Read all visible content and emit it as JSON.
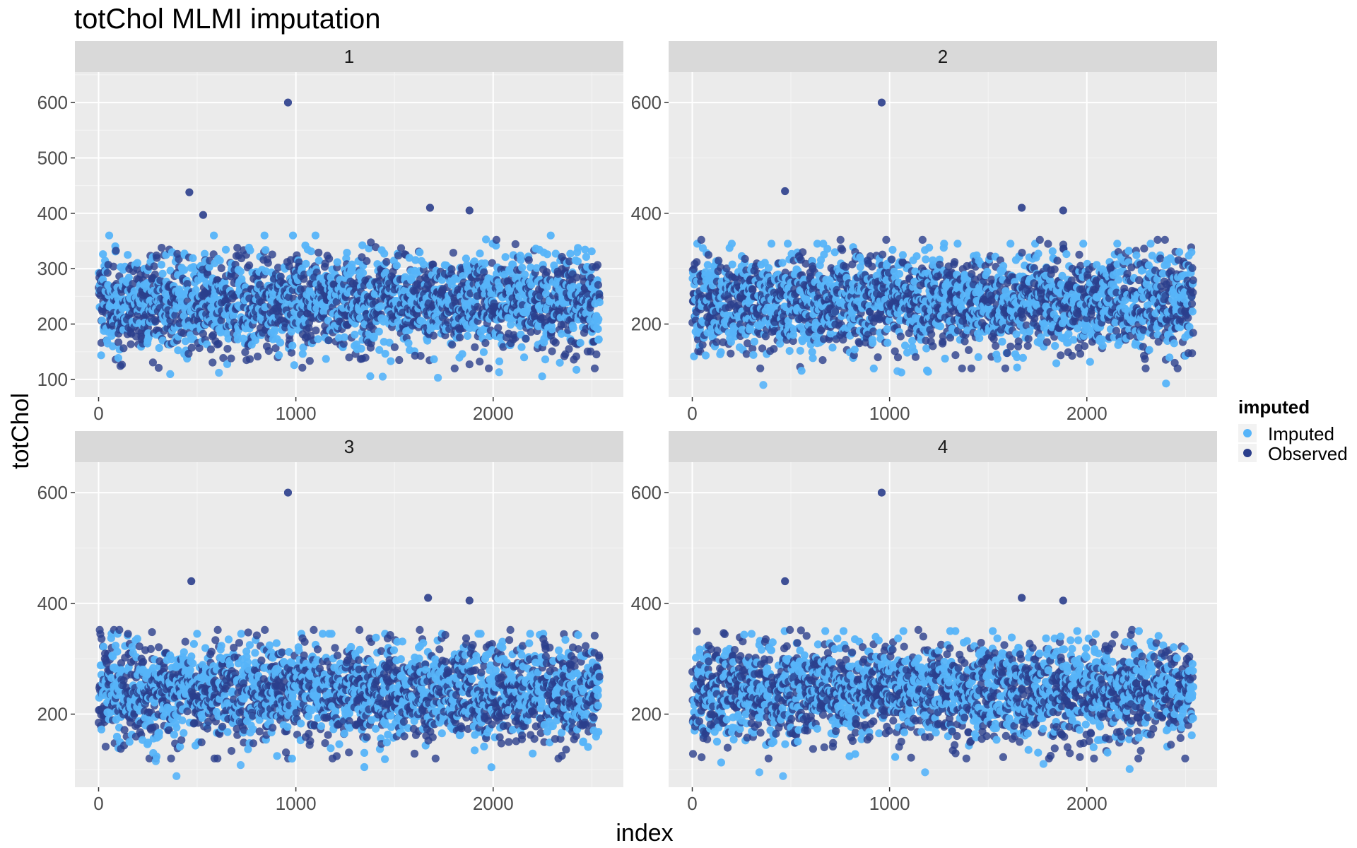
{
  "chart_data": {
    "type": "scatter",
    "title": "totChol MLMI imputation",
    "xlabel": "index",
    "ylabel": "totChol",
    "legend": {
      "title": "imputed",
      "placement": "right",
      "entries": [
        {
          "label": "Imputed",
          "color": "#56B4F9"
        },
        {
          "label": "Observed",
          "color": "#2B3E8C"
        }
      ]
    },
    "colors": {
      "Imputed": "#56B4F9",
      "Observed": "#2B3E8C",
      "panel_bg": "#EBEBEB",
      "strip_bg": "#D9D9D9"
    },
    "grid": true,
    "x_range": [
      -120,
      2660
    ],
    "x_ticks": [
      0,
      1000,
      2000
    ],
    "x_tick_labels": [
      "0",
      "1000",
      "2000"
    ],
    "n_points_per_panel": 2540,
    "panels": [
      {
        "label": "1",
        "ylim": [
          68,
          655
        ],
        "y_ticks": [
          100,
          200,
          300,
          400,
          500,
          600
        ],
        "y_tick_labels": [
          "100",
          "200",
          "300",
          "400",
          "500",
          "600"
        ],
        "imputed_range": [
          100,
          360
        ],
        "highlights": [
          {
            "x": 960,
            "y": 600,
            "group": "Observed"
          },
          {
            "x": 460,
            "y": 438,
            "group": "Observed"
          },
          {
            "x": 530,
            "y": 397,
            "group": "Observed"
          },
          {
            "x": 1680,
            "y": 410,
            "group": "Observed"
          },
          {
            "x": 1880,
            "y": 405,
            "group": "Observed"
          },
          {
            "x": 1440,
            "y": 105,
            "group": "Imputed"
          },
          {
            "x": 1720,
            "y": 103,
            "group": "Imputed"
          },
          {
            "x": 610,
            "y": 112,
            "group": "Imputed"
          },
          {
            "x": 2030,
            "y": 113,
            "group": "Imputed"
          }
        ]
      },
      {
        "label": "2",
        "ylim": [
          68,
          655
        ],
        "y_ticks": [
          200,
          400,
          600
        ],
        "y_tick_labels": [
          "200",
          "400",
          "600"
        ],
        "imputed_range": [
          90,
          345
        ],
        "highlights": [
          {
            "x": 960,
            "y": 600,
            "group": "Observed"
          },
          {
            "x": 470,
            "y": 440,
            "group": "Observed"
          },
          {
            "x": 1670,
            "y": 410,
            "group": "Observed"
          },
          {
            "x": 1880,
            "y": 405,
            "group": "Observed"
          },
          {
            "x": 360,
            "y": 90,
            "group": "Imputed"
          },
          {
            "x": 1040,
            "y": 115,
            "group": "Imputed"
          }
        ]
      },
      {
        "label": "3",
        "ylim": [
          68,
          655
        ],
        "y_ticks": [
          200,
          400,
          600
        ],
        "y_tick_labels": [
          "200",
          "400",
          "600"
        ],
        "imputed_range": [
          85,
          345
        ],
        "highlights": [
          {
            "x": 960,
            "y": 600,
            "group": "Observed"
          },
          {
            "x": 470,
            "y": 440,
            "group": "Observed"
          },
          {
            "x": 1670,
            "y": 410,
            "group": "Observed"
          },
          {
            "x": 1880,
            "y": 405,
            "group": "Observed"
          },
          {
            "x": 395,
            "y": 88,
            "group": "Imputed"
          },
          {
            "x": 720,
            "y": 108,
            "group": "Imputed"
          },
          {
            "x": 290,
            "y": 115,
            "group": "Imputed"
          }
        ]
      },
      {
        "label": "4",
        "ylim": [
          68,
          655
        ],
        "y_ticks": [
          200,
          400,
          600
        ],
        "y_tick_labels": [
          "200",
          "400",
          "600"
        ],
        "imputed_range": [
          85,
          350
        ],
        "highlights": [
          {
            "x": 960,
            "y": 600,
            "group": "Observed"
          },
          {
            "x": 470,
            "y": 440,
            "group": "Observed"
          },
          {
            "x": 1670,
            "y": 410,
            "group": "Observed"
          },
          {
            "x": 1880,
            "y": 405,
            "group": "Observed"
          },
          {
            "x": 340,
            "y": 95,
            "group": "Imputed"
          },
          {
            "x": 460,
            "y": 88,
            "group": "Imputed"
          },
          {
            "x": 1180,
            "y": 95,
            "group": "Imputed"
          },
          {
            "x": 1780,
            "y": 110,
            "group": "Imputed"
          }
        ]
      }
    ]
  }
}
